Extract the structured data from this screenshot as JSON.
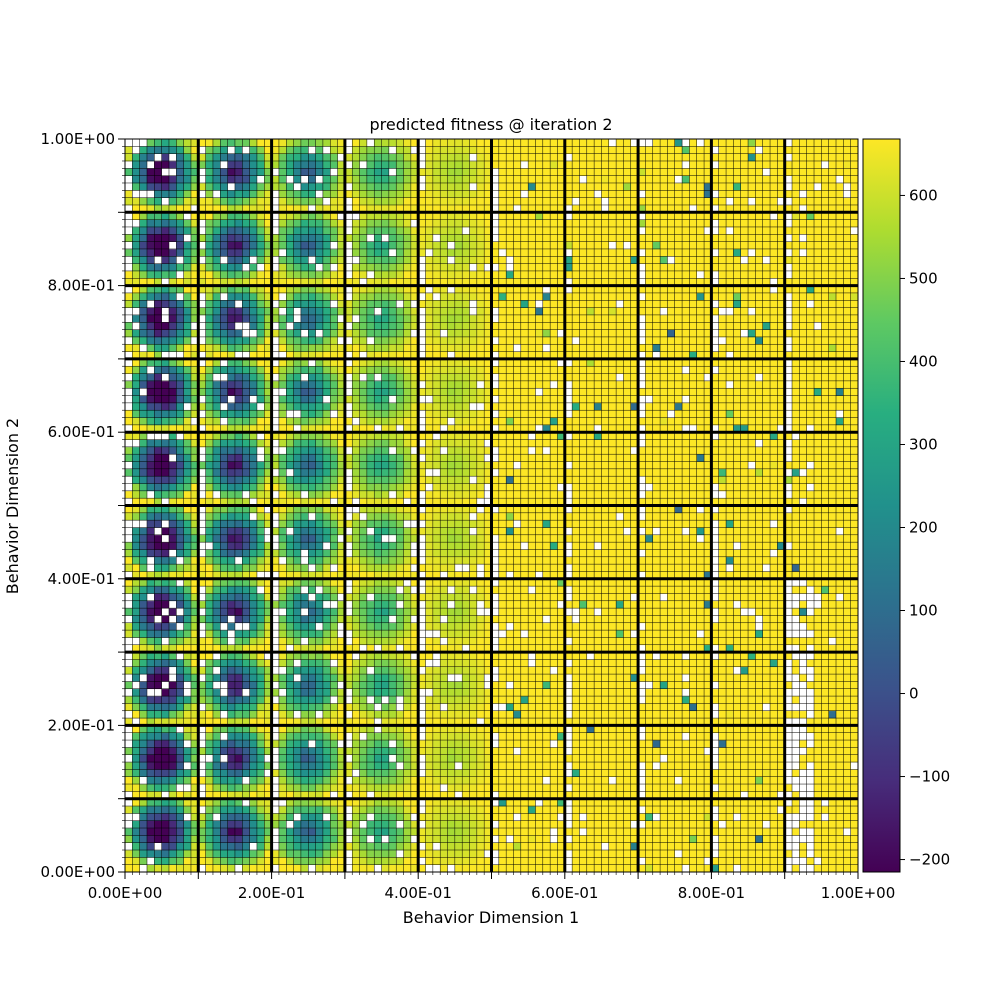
{
  "chart_data": {
    "type": "heatmap",
    "title": "predicted fitness @ iteration 2",
    "xlabel": "Behavior Dimension 1",
    "ylabel": "Behavior Dimension 2",
    "xlim": [
      0.0,
      1.0
    ],
    "ylim": [
      0.0,
      1.0
    ],
    "grid": {
      "coarse_bins": 10,
      "fine_bins_per_coarse": 10,
      "total_bins_per_axis": 100
    },
    "x_tick_labels": [
      "0.00E+00",
      "2.00E-01",
      "4.00E-01",
      "6.00E-01",
      "8.00E-01",
      "1.00E+00"
    ],
    "x_tick_values": [
      0.0,
      0.2,
      0.4,
      0.6,
      0.8,
      1.0
    ],
    "y_tick_labels": [
      "0.00E+00",
      "2.00E-01",
      "4.00E-01",
      "6.00E-01",
      "8.00E-01",
      "1.00E+00"
    ],
    "y_tick_values": [
      0.0,
      0.2,
      0.4,
      0.6,
      0.8,
      1.0
    ],
    "colorbar": {
      "colormap": "viridis",
      "vmin": -215,
      "vmax": 668,
      "tick_values": [
        -200,
        -100,
        0,
        100,
        200,
        300,
        400,
        500,
        600
      ],
      "tick_labels": [
        "−200",
        "−100",
        "0",
        "100",
        "200",
        "300",
        "400",
        "500",
        "600"
      ]
    },
    "empty_cell_color": "#ffffff",
    "pattern_description_estimate": {
      "low_fitness_cores_col0": [
        0.07,
        0.1
      ],
      "low_fitness_cores_col1": [
        0.17,
        0.1
      ],
      "low_fitness_decay_columns": 4.5,
      "high_fitness_region": "x > 0.5 mostly near max"
    }
  }
}
